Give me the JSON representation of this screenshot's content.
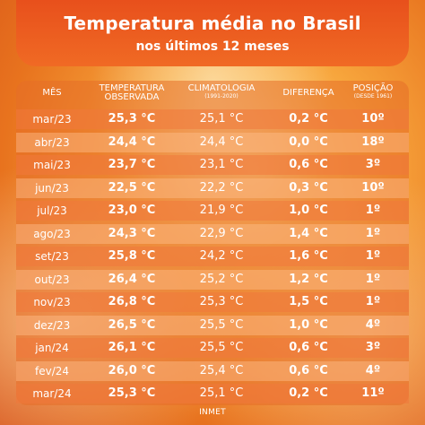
{
  "header": {
    "title": "Temperatura média no Brasil",
    "subtitle": "nos últimos 12 meses"
  },
  "columns": {
    "month": "MÊS",
    "observed_line1": "TEMPERATURA",
    "observed_line2": "OBSERVADA",
    "climatology": "CLIMATOLOGIA",
    "climatology_sub": "(1991-2020)",
    "difference": "DIFERENÇA",
    "position": "POSIÇÃO",
    "position_sub": "(DESDE 1961)"
  },
  "rows": [
    {
      "month": "mar/23",
      "observed": "25,3 °C",
      "climatology": "25,1 °C",
      "difference": "0,2 °C",
      "position": "10º"
    },
    {
      "month": "abr/23",
      "observed": "24,4 °C",
      "climatology": "24,4 °C",
      "difference": "0,0 °C",
      "position": "18º"
    },
    {
      "month": "mai/23",
      "observed": "23,7 °C",
      "climatology": "23,1 °C",
      "difference": "0,6 °C",
      "position": "3º"
    },
    {
      "month": "jun/23",
      "observed": "22,5 °C",
      "climatology": "22,2 °C",
      "difference": "0,3 °C",
      "position": "10º"
    },
    {
      "month": "jul/23",
      "observed": "23,0 °C",
      "climatology": "21,9 °C",
      "difference": "1,0 °C",
      "position": "1º"
    },
    {
      "month": "ago/23",
      "observed": "24,3 °C",
      "climatology": "22,9 °C",
      "difference": "1,4 °C",
      "position": "1º"
    },
    {
      "month": "set/23",
      "observed": "25,8 °C",
      "climatology": "24,2 °C",
      "difference": "1,6 °C",
      "position": "1º"
    },
    {
      "month": "out/23",
      "observed": "26,4 °C",
      "climatology": "25,2 °C",
      "difference": "1,2 °C",
      "position": "1º"
    },
    {
      "month": "nov/23",
      "observed": "26,8 °C",
      "climatology": "25,3 °C",
      "difference": "1,5 °C",
      "position": "1º"
    },
    {
      "month": "dez/23",
      "observed": "26,5 °C",
      "climatology": "25,5 °C",
      "difference": "1,0 °C",
      "position": "4º"
    },
    {
      "month": "jan/24",
      "observed": "26,1 °C",
      "climatology": "25,5 °C",
      "difference": "0,6 °C",
      "position": "3º"
    },
    {
      "month": "fev/24",
      "observed": "26,0 °C",
      "climatology": "25,4 °C",
      "difference": "0,6 °C",
      "position": "4º"
    },
    {
      "month": "mar/24",
      "observed": "25,3 °C",
      "climatology": "25,1 °C",
      "difference": "0,2 °C",
      "position": "11º"
    }
  ],
  "footer": "INMET"
}
